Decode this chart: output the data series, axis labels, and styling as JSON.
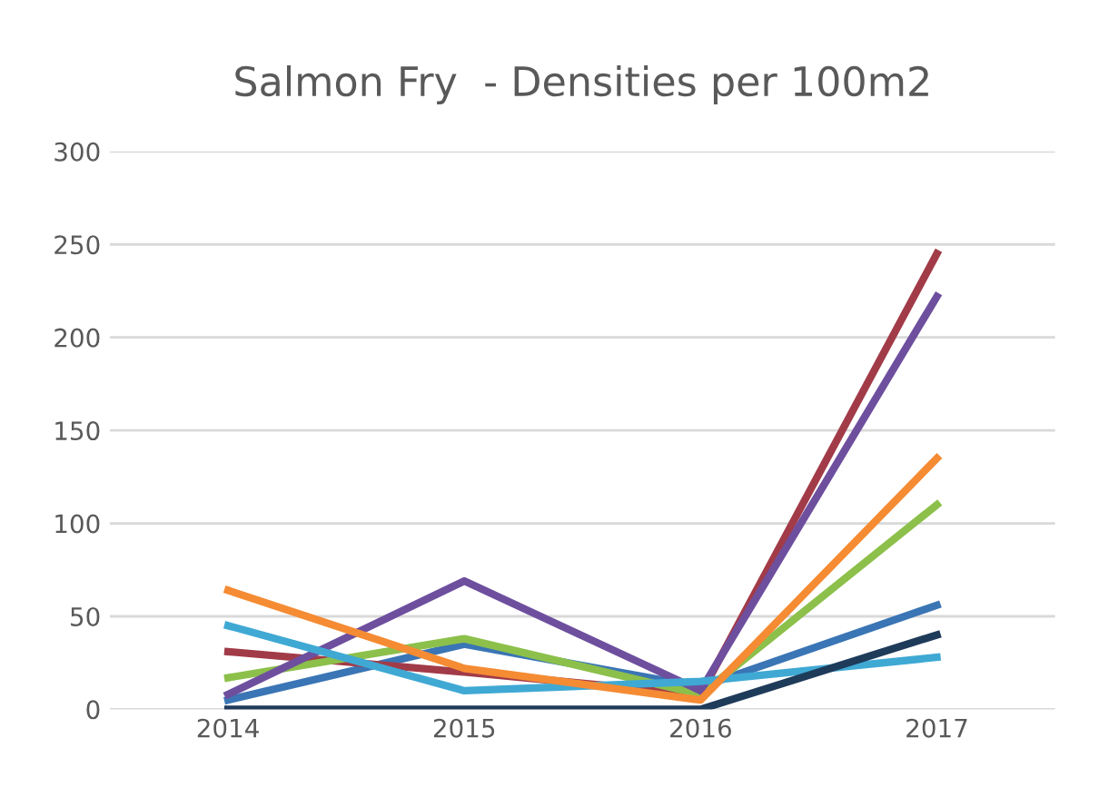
{
  "chart_data": {
    "type": "line",
    "title": "Salmon Fry  - Densities per 100m2",
    "categories": [
      "2014",
      "2015",
      "2016",
      "2017"
    ],
    "series": [
      {
        "color": "#3a75b5",
        "values": [
          5,
          35,
          12,
          56
        ]
      },
      {
        "color": "#a23b48",
        "values": [
          31,
          20,
          8,
          245
        ]
      },
      {
        "color": "#8cc04b",
        "values": [
          17,
          38,
          8,
          110
        ]
      },
      {
        "color": "#6e4f9e",
        "values": [
          8,
          69,
          10,
          222
        ]
      },
      {
        "color": "#3fa9d4",
        "values": [
          45,
          10,
          15,
          28
        ]
      },
      {
        "color": "#f58b33",
        "values": [
          64,
          22,
          5,
          135
        ]
      },
      {
        "color": "#1f3b5a",
        "values": [
          0,
          0,
          0,
          40
        ]
      }
    ],
    "ylim": [
      0,
      300
    ],
    "yticks": [
      0,
      50,
      100,
      150,
      200,
      250,
      300
    ],
    "grid": "y",
    "line_style": "solid",
    "marker": "none"
  }
}
